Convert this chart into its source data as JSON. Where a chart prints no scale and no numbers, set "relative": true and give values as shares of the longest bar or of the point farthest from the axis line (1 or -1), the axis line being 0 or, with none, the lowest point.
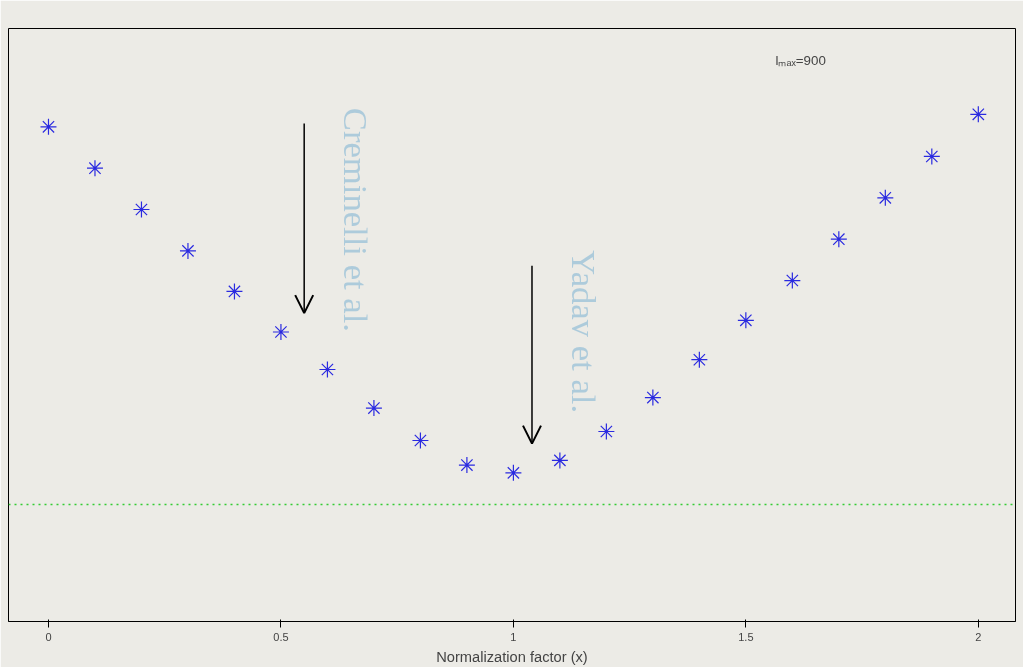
{
  "chart_data": {
    "type": "scatter",
    "relative": true,
    "xlabel": "Normalization factor (x)",
    "x": [
      0,
      0.1,
      0.2,
      0.3,
      0.4,
      0.5,
      0.6,
      0.7,
      0.8,
      0.9,
      1.0,
      1.1,
      1.2,
      1.3,
      1.4,
      1.5,
      1.6,
      1.7,
      1.8,
      1.9,
      2.0
    ],
    "series": [
      {
        "color": "#2a2ae0",
        "values": [
          0.968,
          0.862,
          0.756,
          0.65,
          0.546,
          0.442,
          0.346,
          0.247,
          0.164,
          0.101,
          0.081,
          0.113,
          0.187,
          0.274,
          0.371,
          0.472,
          0.574,
          0.68,
          0.786,
          0.892,
          1.0
        ]
      }
    ],
    "marker": "cross",
    "grid": false,
    "xlim": [
      -0.086,
      2.08
    ],
    "xticks": [
      0,
      0.5,
      1,
      1.5,
      2
    ],
    "ref_lines": [
      {
        "axis": "y",
        "value": 0,
        "color": "#33cc33",
        "line_style": "dotted"
      }
    ],
    "annotations": [
      "lₘₐₓ=900",
      "Creminelli et al.",
      "Yadav et al."
    ]
  }
}
